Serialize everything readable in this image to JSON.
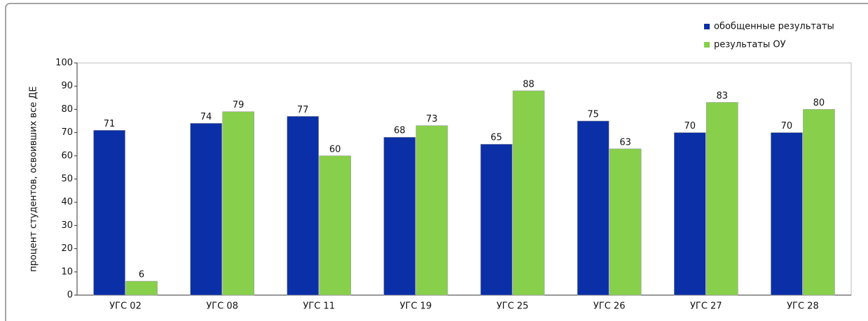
{
  "chart_data": {
    "type": "bar",
    "y_label": "процент студентов, освоивших все ДЕ",
    "categories": [
      "УГС 02",
      "УГС 08",
      "УГС 11",
      "УГС 19",
      "УГС 25",
      "УГС 26",
      "УГС 27",
      "УГС 28"
    ],
    "series": [
      {
        "name": "обобщенные результаты",
        "color": "#0a2fa6",
        "values": [
          71,
          74,
          77,
          68,
          65,
          75,
          70,
          70
        ]
      },
      {
        "name": "результаты ОУ",
        "color": "#88d04b",
        "values": [
          6,
          79,
          60,
          73,
          88,
          63,
          83,
          80
        ]
      }
    ],
    "ylim": [
      0,
      100
    ],
    "yticks": [
      0,
      10,
      20,
      30,
      40,
      50,
      60,
      70,
      80,
      90,
      100
    ],
    "legend": "upper right",
    "grid": false
  }
}
